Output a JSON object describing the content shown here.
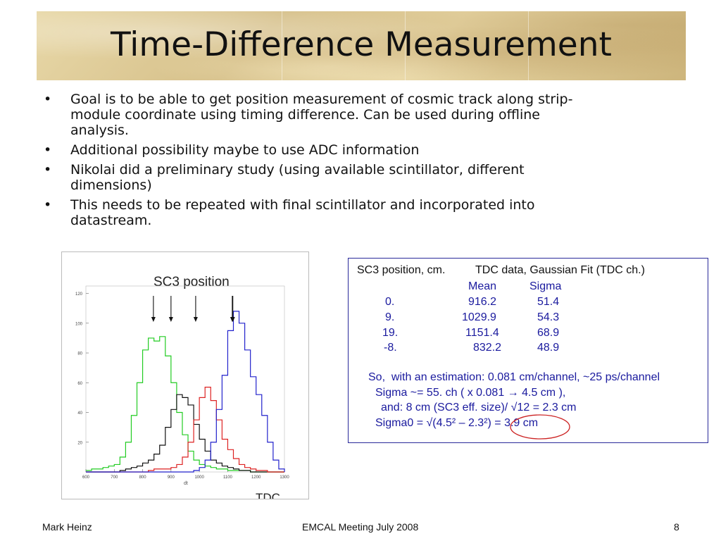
{
  "slide": {
    "title": "Time-Difference Measurement",
    "bullets": [
      "Goal is to be able to get position measurement of cosmic track along strip-module coordinate using timing difference. Can be used during offline analysis.",
      "Additional possibility maybe to use ADC information",
      "Nikolai did a preliminary study (using available scintillator, different dimensions)",
      "This needs to be repeated with final scintillator and incorporated into datastream."
    ],
    "bullet_lines": [
      [
        "Goal is to be able to get position measurement of cosmic track along strip-",
        "module coordinate using timing difference. Can be used during offline",
        "analysis."
      ],
      [
        "Additional possibility maybe to use ADC information"
      ],
      [
        "Nikolai did a preliminary study (using available scintillator, different",
        "dimensions)"
      ],
      [
        "This needs to be repeated with final scintillator and incorporated into",
        "datastream."
      ]
    ],
    "bullet_symbol": "•"
  },
  "plot": {
    "title": "SC3 position",
    "xlabel": "dt",
    "x_title": "TDC",
    "x_ticks": [
      "600",
      "700",
      "800",
      "900",
      "1000",
      "1100",
      "1200",
      "1300"
    ],
    "y_ticks": [
      "20",
      "40",
      "60",
      "80",
      "100",
      "120"
    ]
  },
  "chart_data": {
    "type": "line",
    "title": "SC3 position",
    "xlabel": "dt",
    "xlim": [
      600,
      1300
    ],
    "ylim": [
      0,
      125
    ],
    "series": [
      {
        "color": "#22cc22",
        "x": [
          600,
          620,
          640,
          660,
          680,
          700,
          720,
          740,
          760,
          780,
          800,
          820,
          840,
          860,
          880,
          900,
          920,
          940,
          960,
          980,
          1000,
          1020,
          1040,
          1060,
          1080,
          1100,
          1120,
          1140,
          1160,
          1180,
          1200,
          1220,
          1240,
          1260,
          1280,
          1300
        ],
        "y": [
          1,
          2,
          2,
          3,
          4,
          5,
          10,
          20,
          38,
          60,
          82,
          90,
          88,
          91,
          78,
          60,
          40,
          25,
          14,
          8,
          5,
          4,
          3,
          2,
          2,
          1,
          1,
          1,
          1,
          0,
          0,
          0,
          0,
          0,
          0,
          0
        ]
      },
      {
        "color": "#111111",
        "x": [
          600,
          620,
          640,
          660,
          680,
          700,
          720,
          740,
          760,
          780,
          800,
          820,
          840,
          860,
          880,
          900,
          920,
          940,
          960,
          980,
          1000,
          1020,
          1040,
          1060,
          1080,
          1100,
          1120,
          1140,
          1160,
          1180,
          1200,
          1220,
          1240,
          1260,
          1280,
          1300
        ],
        "y": [
          0,
          0,
          0,
          0,
          0,
          0,
          1,
          2,
          3,
          4,
          6,
          8,
          12,
          18,
          30,
          42,
          52,
          50,
          45,
          32,
          22,
          14,
          8,
          6,
          4,
          3,
          2,
          1,
          1,
          0,
          0,
          0,
          0,
          0,
          0,
          0
        ]
      },
      {
        "color": "#dd2222",
        "x": [
          600,
          620,
          640,
          660,
          680,
          700,
          720,
          740,
          760,
          780,
          800,
          820,
          840,
          860,
          880,
          900,
          920,
          940,
          960,
          980,
          1000,
          1020,
          1040,
          1060,
          1080,
          1100,
          1120,
          1140,
          1160,
          1180,
          1200,
          1220,
          1240,
          1260,
          1280,
          1300
        ],
        "y": [
          0,
          0,
          0,
          0,
          0,
          0,
          0,
          0,
          0,
          0,
          0,
          1,
          2,
          2,
          2,
          3,
          5,
          10,
          20,
          35,
          50,
          57,
          48,
          35,
          22,
          15,
          9,
          5,
          3,
          2,
          1,
          1,
          0,
          0,
          0,
          0
        ]
      },
      {
        "color": "#2222cc",
        "x": [
          600,
          620,
          640,
          660,
          680,
          700,
          720,
          740,
          760,
          780,
          800,
          820,
          840,
          860,
          880,
          900,
          920,
          940,
          960,
          980,
          1000,
          1020,
          1040,
          1060,
          1080,
          1100,
          1120,
          1140,
          1160,
          1180,
          1200,
          1220,
          1240,
          1260,
          1280,
          1300
        ],
        "y": [
          0,
          0,
          0,
          0,
          0,
          0,
          0,
          0,
          0,
          0,
          0,
          0,
          0,
          0,
          0,
          0,
          0,
          0,
          0,
          1,
          3,
          8,
          20,
          42,
          65,
          95,
          108,
          100,
          82,
          64,
          52,
          38,
          20,
          8,
          2,
          0
        ]
      }
    ],
    "arrows_x": [
      838,
      900,
      987,
      1116,
      1118
    ]
  },
  "fit_table": {
    "header_left": "SC3 position, cm.",
    "header_right": "TDC data, Gaussian Fit (TDC ch.)",
    "col_mean": "Mean",
    "col_sigma": "Sigma",
    "rows": [
      {
        "pos": "0.",
        "mean": "916.2",
        "sigma": "51.4"
      },
      {
        "pos": "9.",
        "mean": "1029.9",
        "sigma": "54.3"
      },
      {
        "pos": "19.",
        "mean": "1151.4",
        "sigma": "68.9"
      },
      {
        "pos": "-8.",
        "mean": "832.2",
        "sigma": "48.9"
      }
    ],
    "notes": [
      "So,  with an estimation: 0.081 cm/channel, ~25 ps/channel",
      "Sigma ~= 55. ch ( x 0.081 → 4.5 cm ),",
      "and: 8 cm (SC3 eff. size)/ √12 = 2.3 cm",
      "Sigma0 = √(4.5² – 2.3²) = 3.9 cm"
    ]
  },
  "footer": {
    "author": "Mark Heinz",
    "meeting": "EMCAL Meeting July 2008",
    "page": "8"
  },
  "colors": {
    "fit_text": "#1a1a9e",
    "fit_border": "#2a2a9a",
    "highlight_ellipse": "#cc2222"
  }
}
